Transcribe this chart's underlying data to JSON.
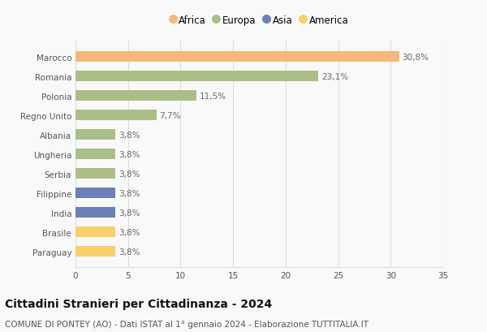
{
  "categories": [
    "Paraguay",
    "Brasile",
    "India",
    "Filippine",
    "Serbia",
    "Ungheria",
    "Albania",
    "Regno Unito",
    "Polonia",
    "Romania",
    "Marocco"
  ],
  "values": [
    3.8,
    3.8,
    3.8,
    3.8,
    3.8,
    3.8,
    3.8,
    7.7,
    11.5,
    23.1,
    30.8
  ],
  "labels": [
    "3,8%",
    "3,8%",
    "3,8%",
    "3,8%",
    "3,8%",
    "3,8%",
    "3,8%",
    "7,7%",
    "11,5%",
    "23,1%",
    "30,8%"
  ],
  "colors": [
    "#f9cf6b",
    "#f9cf6b",
    "#6b7fb8",
    "#6b7fb8",
    "#aabf88",
    "#aabf88",
    "#aabf88",
    "#aabf88",
    "#aabf88",
    "#aabf88",
    "#f5b87a"
  ],
  "legend": [
    {
      "label": "Africa",
      "color": "#f5b87a"
    },
    {
      "label": "Europa",
      "color": "#aabf88"
    },
    {
      "label": "Asia",
      "color": "#6b7fb8"
    },
    {
      "label": "America",
      "color": "#f9cf6b"
    }
  ],
  "xlim": [
    0,
    35
  ],
  "xticks": [
    0,
    5,
    10,
    15,
    20,
    25,
    30,
    35
  ],
  "title": "Cittadini Stranieri per Cittadinanza - 2024",
  "subtitle": "COMUNE DI PONTEY (AO) - Dati ISTAT al 1° gennaio 2024 - Elaborazione TUTTITALIA.IT",
  "title_fontsize": 10,
  "subtitle_fontsize": 7.5,
  "label_fontsize": 7.5,
  "tick_fontsize": 7.5,
  "legend_fontsize": 8.5,
  "bar_height": 0.55,
  "background_color": "#f9f9f9",
  "grid_color": "#dddddd"
}
